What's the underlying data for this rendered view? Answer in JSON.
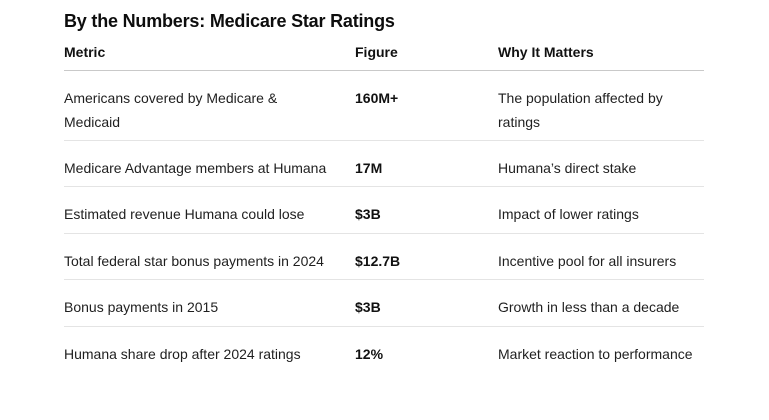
{
  "page": {
    "title": "By the Numbers: Medicare Star Ratings"
  },
  "table": {
    "headers": [
      "Metric",
      "Figure",
      "Why It Matters"
    ],
    "rows": [
      {
        "metric": "Americans covered by Medicare & Medicaid",
        "figure": "160M+",
        "why": "The population affected by ratings"
      },
      {
        "metric": "Medicare Advantage members at Humana",
        "figure": "17M",
        "why": "Humana’s direct stake"
      },
      {
        "metric": "Estimated revenue Humana could lose",
        "figure": "$3B",
        "why": "Impact of lower ratings"
      },
      {
        "metric": "Total federal star bonus payments in 2024",
        "figure": "$12.7B",
        "why": "Incentive pool for all insurers"
      },
      {
        "metric": "Bonus payments in 2015",
        "figure": "$3B",
        "why": "Growth in less than a decade"
      },
      {
        "metric": "Humana share drop after 2024 ratings",
        "figure": "12%",
        "why": "Market reaction to performance"
      }
    ]
  },
  "colors": {
    "background": "#ffffff",
    "title_text": "#0d0d0d",
    "body_text": "#1f1f1f",
    "header_divider": "#c9c9c9",
    "row_divider": "#e4e4e4"
  }
}
